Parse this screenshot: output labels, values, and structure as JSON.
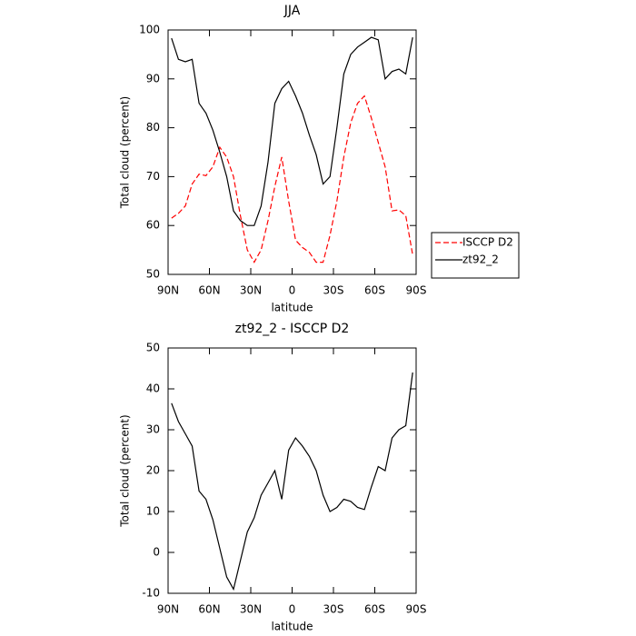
{
  "chart_data": [
    {
      "type": "line",
      "title": "JJA",
      "x_label": "latitude",
      "y_label": "Total cloud (percent)",
      "x": [
        87.5,
        82.5,
        77.5,
        72.5,
        67.5,
        62.5,
        57.5,
        52.5,
        47.5,
        42.5,
        37.5,
        32.5,
        27.5,
        22.5,
        17.5,
        12.5,
        7.5,
        2.5,
        -2.5,
        -7.5,
        -12.5,
        -17.5,
        -22.5,
        -27.5,
        -32.5,
        -37.5,
        -42.5,
        -47.5,
        -52.5,
        -57.5,
        -62.5,
        -67.5,
        -72.5,
        -77.5,
        -82.5,
        -87.5
      ],
      "series": [
        {
          "name": "ISCCP D2",
          "color": "#ff0000",
          "line_style": "dashed",
          "values": [
            61.5,
            62.5,
            64,
            68.5,
            70.5,
            70.2,
            72,
            76,
            74,
            70,
            62,
            55,
            52.5,
            55,
            61,
            68,
            74,
            65,
            57,
            55.5,
            54.5,
            52.5,
            52.5,
            58,
            65,
            74,
            81,
            85,
            86.5,
            82,
            77,
            72,
            63,
            63.2,
            62,
            54
          ]
        },
        {
          "name": "zt92_2",
          "color": "#000000",
          "line_style": "solid",
          "values": [
            98.3,
            94,
            93.5,
            94,
            85,
            83,
            79.5,
            75,
            70,
            63,
            61,
            60,
            60,
            64,
            73,
            85,
            88,
            89.5,
            86.5,
            83,
            78.5,
            74.5,
            68.5,
            70,
            80,
            91,
            95,
            96.5,
            97.5,
            98.5,
            98,
            90,
            91.5,
            92,
            91,
            98.5
          ]
        }
      ],
      "xlim": [
        90,
        -90
      ],
      "xticks": [
        {
          "value": 90,
          "label": "90N"
        },
        {
          "value": 60,
          "label": "60N"
        },
        {
          "value": 30,
          "label": "30N"
        },
        0,
        {
          "value": -30,
          "label": "30S"
        },
        {
          "value": -60,
          "label": "60S"
        },
        {
          "value": -90,
          "label": "90S"
        }
      ],
      "ylim": [
        50,
        100
      ],
      "yticks": [
        50,
        60,
        70,
        80,
        90,
        100
      ],
      "legend": "outside-right"
    },
    {
      "type": "line",
      "title": "zt92_2 - ISCCP D2",
      "x_label": "latitude",
      "y_label": "Total cloud (percent)",
      "x": [
        87.5,
        82.5,
        77.5,
        72.5,
        67.5,
        62.5,
        57.5,
        52.5,
        47.5,
        42.5,
        37.5,
        32.5,
        27.5,
        22.5,
        17.5,
        12.5,
        7.5,
        2.5,
        -2.5,
        -7.5,
        -12.5,
        -17.5,
        -22.5,
        -27.5,
        -32.5,
        -37.5,
        -42.5,
        -47.5,
        -52.5,
        -57.5,
        -62.5,
        -67.5,
        -72.5,
        -77.5,
        -82.5,
        -87.5
      ],
      "values": [
        36.5,
        32,
        29,
        26,
        15,
        13,
        8,
        1,
        -6,
        -9,
        -2,
        5,
        8.5,
        14,
        17,
        20,
        13,
        25,
        28,
        26,
        23.5,
        20,
        14,
        10,
        11,
        13,
        12.5,
        11,
        10.5,
        16,
        21,
        20,
        28,
        30,
        31,
        44
      ],
      "color": "#000000",
      "xlim": [
        90,
        -90
      ],
      "xticks": [
        {
          "value": 90,
          "label": "90N"
        },
        {
          "value": 60,
          "label": "60N"
        },
        {
          "value": 30,
          "label": "30N"
        },
        0,
        {
          "value": -30,
          "label": "30S"
        },
        {
          "value": -60,
          "label": "60S"
        },
        {
          "value": -90,
          "label": "90S"
        }
      ],
      "ylim": [
        -10,
        50
      ],
      "yticks": [
        -10,
        0,
        10,
        20,
        30,
        40,
        50
      ]
    }
  ]
}
